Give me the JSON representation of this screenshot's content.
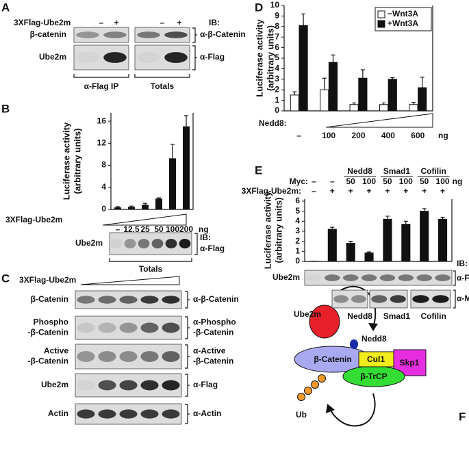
{
  "panels": {
    "A": {
      "letter": "A",
      "lane_label": "3XFlag-Ube2m",
      "lanes": [
        "–",
        "+",
        "–",
        "+"
      ],
      "ib": "IB:",
      "rows": [
        "β-catenin",
        "Ube2m"
      ],
      "antibodies": [
        "α-β-Catenin",
        "α-Flag"
      ],
      "groups": [
        "α-Flag IP",
        "Totals"
      ]
    },
    "B": {
      "letter": "B",
      "blot_row": "Ube2m",
      "ib": "IB:",
      "antibody": "α-Flag",
      "group": "Totals"
    },
    "C": {
      "letter": "C",
      "lane_label": "3XFlag-Ube2m",
      "rows": [
        [
          "β-Catenin"
        ],
        [
          "Phospho",
          "-β-Catenin"
        ],
        [
          "Active",
          "-β-Catenin"
        ],
        [
          "Ube2m"
        ],
        [
          "Actin"
        ]
      ],
      "antibodies": [
        [
          "α-β-Catenin"
        ],
        [
          "α-Phospho",
          "-β-Catenin"
        ],
        [
          "α-Active",
          "-β-Catenin"
        ],
        [
          "α-Flag"
        ],
        [
          "α-Actin"
        ]
      ]
    },
    "D": {
      "letter": "D"
    },
    "E": {
      "letter": "E",
      "groups": [
        "Nedd8",
        "Smad1",
        "Cofilin"
      ],
      "myc_label": "Myc:",
      "myc": [
        "–",
        "–",
        "50",
        "100",
        "50",
        "100",
        "50",
        "100"
      ],
      "unit": "ng",
      "flag_label": "3XFlag-Ube2m:",
      "flag": [
        "–",
        "+",
        "+",
        "+",
        "+",
        "+",
        "+",
        "+"
      ],
      "ib": "IB:",
      "blot_row": "Ube2m",
      "antibodies": [
        "α-Flag",
        "α-Myc"
      ],
      "myc_groups": [
        "Nedd8",
        "Smad1",
        "Cofilin"
      ]
    },
    "F": {
      "letter": "F",
      "ube2m": "Ube2m",
      "nedd8": "Nedd8",
      "beta_catenin": "β-Catenin",
      "cul1": "Cul1",
      "skp1": "Skp1",
      "btrcp": "β-TrCP",
      "ub": "Ub"
    }
  },
  "chart_data": [
    {
      "type": "bar",
      "y_label": [
        "Luciferase activity",
        "(arbitrary units)"
      ],
      "x_label": "3XFlag-Ube2m",
      "x_unit": "ng",
      "categories": [
        "–",
        "12.5",
        "25",
        "50",
        "100",
        "200"
      ],
      "series": [
        {
          "color": "#111111",
          "values": [
            0.3,
            0.4,
            0.8,
            1.9,
            9.2,
            15.0
          ],
          "errors": [
            0.2,
            0.2,
            0.3,
            0.2,
            2.6,
            2.0
          ]
        }
      ],
      "ylim": [
        0,
        17.5
      ],
      "yticks": [
        0,
        4,
        8,
        12,
        16
      ]
    },
    {
      "type": "bar",
      "y_label": [
        "Luciferase activity",
        "(arbitrary units)"
      ],
      "x_label": "Nedd8:",
      "x_unit": "ng",
      "categories": [
        "–",
        "100",
        "200",
        "400",
        "600"
      ],
      "series": [
        {
          "name": "−Wnt3A",
          "color": "#ffffff",
          "values": [
            1.5,
            2.0,
            0.6,
            0.6,
            0.6
          ],
          "errors": [
            0.3,
            1.1,
            0.15,
            0.15,
            0.2
          ]
        },
        {
          "name": "+Wnt3A",
          "color": "#111111",
          "values": [
            8.1,
            4.6,
            3.1,
            3.0,
            2.2
          ],
          "errors": [
            1.1,
            0.7,
            0.8,
            0.15,
            1.0
          ]
        }
      ],
      "ylim": [
        0,
        10
      ],
      "yticks": [
        0,
        1,
        2,
        3,
        4,
        5,
        6,
        7,
        8,
        9,
        10
      ],
      "legend": "upper right"
    },
    {
      "type": "bar",
      "y_label": [
        "Luciferase activity",
        "(arbitrary units)"
      ],
      "categories": [
        null,
        null,
        null,
        null,
        null,
        null,
        null,
        null
      ],
      "series": [
        {
          "color": "#111111",
          "values": [
            0.02,
            3.2,
            1.8,
            0.85,
            4.2,
            3.7,
            5.0,
            4.2
          ],
          "errors": [
            0,
            0.2,
            0.2,
            0.1,
            0.3,
            0.3,
            0.25,
            0.2
          ]
        }
      ],
      "ylim": [
        0,
        6.2
      ],
      "yticks": [
        0,
        1,
        2,
        3,
        4,
        5,
        6
      ]
    }
  ]
}
